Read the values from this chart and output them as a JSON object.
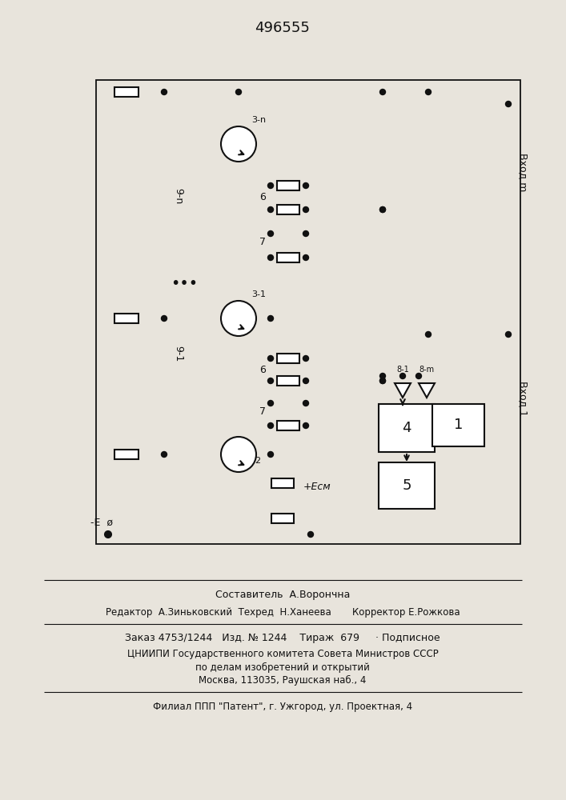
{
  "patent_number": "496555",
  "bg": "#e8e4dc",
  "lc": "#111111",
  "footer": [
    "Составитель  А.Ворончна",
    "Редактор  А.Зиньковский  Техред  Н.Ханеева       Корректор Е.Рожкова",
    "Заказ 4753/1244   Изд. № 1244    Тираж  679     · Подписное",
    "ЦНИИПИ Государственного комитета Совета Министров СССР",
    "по делам изобретений и открытий",
    "Москва, 113035, Раушская наб., 4",
    "Филиал ППП \"Патент\", г. Ужгород, ул. Проектная, 4"
  ],
  "vhod_m": "Вход m",
  "vhod_1": "Вход 1",
  "minus_E": "-E  ø",
  "plus_Ecm": "+Есм",
  "lbl_3n": "3-n",
  "lbl_31": "3-1",
  "lbl_9n": "9-n",
  "lbl_91": "9-1",
  "lbl_6": "6",
  "lbl_7": "7",
  "lbl_2": "2",
  "lbl_4": "4",
  "lbl_5": "5",
  "lbl_1": "1",
  "lbl_8i": "8-1",
  "lbl_8m": "8-m",
  "dots": "•••"
}
